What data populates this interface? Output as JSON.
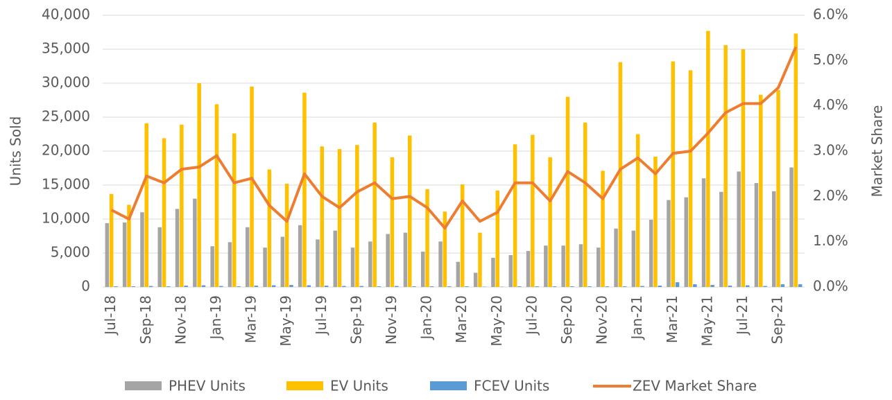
{
  "chart_data": {
    "type": "bar",
    "categories": [
      "Jul-18",
      null,
      "Sep-18",
      null,
      "Nov-18",
      null,
      "Jan-19",
      null,
      "Mar-19",
      null,
      "May-19",
      null,
      "Jul-19",
      null,
      "Sep-19",
      null,
      "Nov-19",
      null,
      "Jan-20",
      null,
      "Mar-20",
      null,
      "May-20",
      null,
      "Jul-20",
      null,
      "Sep-20",
      null,
      "Nov-20",
      null,
      "Jan-21",
      null,
      "Mar-21",
      null,
      "May-21",
      null,
      "Jul-21",
      null,
      "Sep-21",
      null
    ],
    "series": [
      {
        "name": "PHEV Units",
        "type": "bar",
        "color": "#a5a5a5",
        "values": [
          9400,
          9500,
          11000,
          8800,
          11500,
          13000,
          6000,
          6600,
          8800,
          5800,
          7400,
          9100,
          7000,
          8300,
          5800,
          6700,
          7800,
          8000,
          5200,
          6700,
          3700,
          2100,
          4300,
          4700,
          5300,
          6100,
          6100,
          6300,
          5800,
          8600,
          8300,
          9900,
          12800,
          13200,
          16000,
          14000,
          17000,
          15300,
          14100,
          17600
        ]
      },
      {
        "name": "EV Units",
        "type": "bar",
        "color": "#ffc000",
        "values": [
          13700,
          12100,
          24100,
          21900,
          23900,
          30000,
          26900,
          22600,
          29500,
          17300,
          15200,
          28600,
          20700,
          20300,
          20900,
          24200,
          19100,
          22300,
          14400,
          11100,
          15100,
          8000,
          14200,
          21000,
          22400,
          19100,
          28000,
          24200,
          17100,
          33100,
          22500,
          19200,
          33200,
          31900,
          37700,
          35600,
          35000,
          28300,
          29000,
          37300
        ]
      },
      {
        "name": "FCEV Units",
        "type": "bar",
        "color": "#5b9bd5",
        "values": [
          100,
          100,
          150,
          100,
          200,
          250,
          150,
          100,
          200,
          250,
          300,
          250,
          200,
          150,
          150,
          100,
          150,
          100,
          100,
          100,
          100,
          50,
          50,
          100,
          100,
          100,
          100,
          100,
          100,
          100,
          150,
          200,
          700,
          400,
          300,
          200,
          250,
          150,
          400,
          400
        ]
      },
      {
        "name": "ZEV Market Share",
        "type": "line",
        "axis": "y2",
        "color": "#ed7d31",
        "values": [
          1.7,
          1.5,
          2.45,
          2.3,
          2.6,
          2.65,
          2.9,
          2.3,
          2.4,
          1.8,
          1.45,
          2.5,
          2.0,
          1.75,
          2.1,
          2.3,
          1.95,
          2.0,
          1.75,
          1.3,
          1.9,
          1.45,
          1.65,
          2.3,
          2.3,
          1.9,
          2.55,
          2.3,
          1.95,
          2.6,
          2.85,
          2.5,
          2.95,
          3.0,
          3.4,
          3.85,
          4.05,
          4.05,
          4.4,
          5.3
        ]
      }
    ],
    "y_label": "Units Sold",
    "y2_label": "Market Share",
    "ylim": [
      0,
      40000
    ],
    "yticks": [
      0,
      {
        "value": 5000,
        "label": "5,000"
      },
      {
        "value": 10000,
        "label": "10,000"
      },
      {
        "value": 15000,
        "label": "15,000"
      },
      {
        "value": 20000,
        "label": "20,000"
      },
      {
        "value": 25000,
        "label": "25,000"
      },
      {
        "value": 30000,
        "label": "30,000"
      },
      {
        "value": 35000,
        "label": "35,000"
      },
      {
        "value": 40000,
        "label": "40,000"
      }
    ],
    "y2lim": [
      0,
      6
    ],
    "y2ticks": [
      {
        "value": 0,
        "label": "0.0%"
      },
      {
        "value": 1,
        "label": "1.0%"
      },
      {
        "value": 2,
        "label": "2.0%"
      },
      {
        "value": 3,
        "label": "3.0%"
      },
      {
        "value": 4,
        "label": "4.0%"
      },
      {
        "value": 5,
        "label": "5.0%"
      },
      {
        "value": 6,
        "label": "6.0%"
      }
    ],
    "grid": true,
    "legend": "bottom"
  }
}
